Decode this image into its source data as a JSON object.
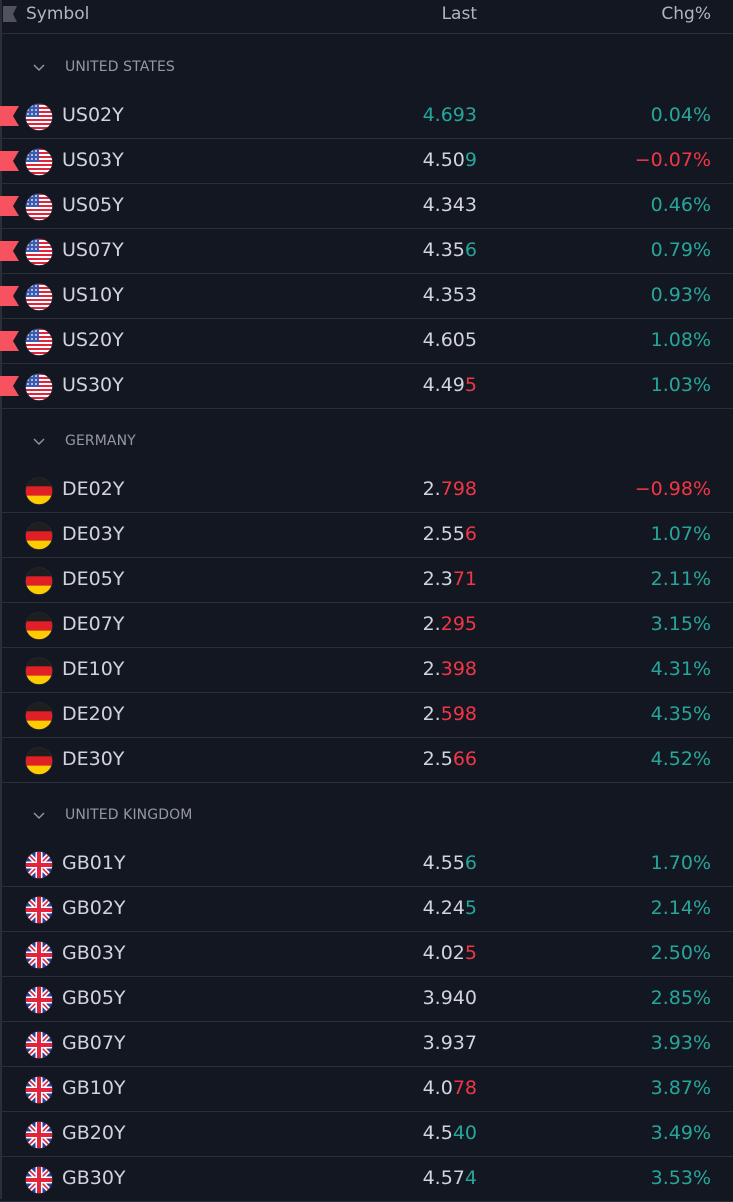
{
  "header": {
    "symbol_label": "Symbol",
    "last_label": "Last",
    "chg_label": "Chg%"
  },
  "colors": {
    "background": "#131722",
    "up": "#26a69a",
    "down": "#f23645",
    "text": "#d1d4dc",
    "muted": "#9598a1",
    "divider": "#2a2e39",
    "marker": "#f7525f"
  },
  "icons": {
    "flag_marker": "red-flag-icon",
    "collapse": "chevron-down-icon"
  },
  "sections": [
    {
      "title": "UNITED STATES",
      "country": "us",
      "rows": [
        {
          "symbol": "US02Y",
          "flagged": true,
          "last_base": "",
          "last_tail": "4.693",
          "tail_dir": "up",
          "chg": "0.04%",
          "chg_dir": "up"
        },
        {
          "symbol": "US03Y",
          "flagged": true,
          "last_base": "4.50",
          "last_tail": "9",
          "tail_dir": "up",
          "chg": "−0.07%",
          "chg_dir": "down"
        },
        {
          "symbol": "US05Y",
          "flagged": true,
          "last_base": "4.343",
          "last_tail": "",
          "tail_dir": "",
          "chg": "0.46%",
          "chg_dir": "up"
        },
        {
          "symbol": "US07Y",
          "flagged": true,
          "last_base": "4.35",
          "last_tail": "6",
          "tail_dir": "up",
          "chg": "0.79%",
          "chg_dir": "up"
        },
        {
          "symbol": "US10Y",
          "flagged": true,
          "last_base": "4.353",
          "last_tail": "",
          "tail_dir": "",
          "chg": "0.93%",
          "chg_dir": "up"
        },
        {
          "symbol": "US20Y",
          "flagged": true,
          "last_base": "4.605",
          "last_tail": "",
          "tail_dir": "",
          "chg": "1.08%",
          "chg_dir": "up"
        },
        {
          "symbol": "US30Y",
          "flagged": true,
          "last_base": "4.49",
          "last_tail": "5",
          "tail_dir": "down",
          "chg": "1.03%",
          "chg_dir": "up"
        }
      ]
    },
    {
      "title": "GERMANY",
      "country": "de",
      "rows": [
        {
          "symbol": "DE02Y",
          "flagged": false,
          "last_base": "2.",
          "last_tail": "798",
          "tail_dir": "down",
          "chg": "−0.98%",
          "chg_dir": "down"
        },
        {
          "symbol": "DE03Y",
          "flagged": false,
          "last_base": "2.55",
          "last_tail": "6",
          "tail_dir": "down",
          "chg": "1.07%",
          "chg_dir": "up"
        },
        {
          "symbol": "DE05Y",
          "flagged": false,
          "last_base": "2.3",
          "last_tail": "71",
          "tail_dir": "down",
          "chg": "2.11%",
          "chg_dir": "up"
        },
        {
          "symbol": "DE07Y",
          "flagged": false,
          "last_base": "2.",
          "last_tail": "295",
          "tail_dir": "down",
          "chg": "3.15%",
          "chg_dir": "up"
        },
        {
          "symbol": "DE10Y",
          "flagged": false,
          "last_base": "2.",
          "last_tail": "398",
          "tail_dir": "down",
          "chg": "4.31%",
          "chg_dir": "up"
        },
        {
          "symbol": "DE20Y",
          "flagged": false,
          "last_base": "2.",
          "last_tail": "598",
          "tail_dir": "down",
          "chg": "4.35%",
          "chg_dir": "up"
        },
        {
          "symbol": "DE30Y",
          "flagged": false,
          "last_base": "2.5",
          "last_tail": "66",
          "tail_dir": "down",
          "chg": "4.52%",
          "chg_dir": "up"
        }
      ]
    },
    {
      "title": "UNITED KINGDOM",
      "country": "gb",
      "rows": [
        {
          "symbol": "GB01Y",
          "flagged": false,
          "last_base": "4.55",
          "last_tail": "6",
          "tail_dir": "up",
          "chg": "1.70%",
          "chg_dir": "up"
        },
        {
          "symbol": "GB02Y",
          "flagged": false,
          "last_base": "4.24",
          "last_tail": "5",
          "tail_dir": "up",
          "chg": "2.14%",
          "chg_dir": "up"
        },
        {
          "symbol": "GB03Y",
          "flagged": false,
          "last_base": "4.02",
          "last_tail": "5",
          "tail_dir": "down",
          "chg": "2.50%",
          "chg_dir": "up"
        },
        {
          "symbol": "GB05Y",
          "flagged": false,
          "last_base": "3.940",
          "last_tail": "",
          "tail_dir": "",
          "chg": "2.85%",
          "chg_dir": "up"
        },
        {
          "symbol": "GB07Y",
          "flagged": false,
          "last_base": "3.937",
          "last_tail": "",
          "tail_dir": "",
          "chg": "3.93%",
          "chg_dir": "up"
        },
        {
          "symbol": "GB10Y",
          "flagged": false,
          "last_base": "4.0",
          "last_tail": "78",
          "tail_dir": "down",
          "chg": "3.87%",
          "chg_dir": "up"
        },
        {
          "symbol": "GB20Y",
          "flagged": false,
          "last_base": "4.5",
          "last_tail": "40",
          "tail_dir": "up",
          "chg": "3.49%",
          "chg_dir": "up"
        },
        {
          "symbol": "GB30Y",
          "flagged": false,
          "last_base": "4.57",
          "last_tail": "4",
          "tail_dir": "up",
          "chg": "3.53%",
          "chg_dir": "up"
        }
      ]
    }
  ]
}
